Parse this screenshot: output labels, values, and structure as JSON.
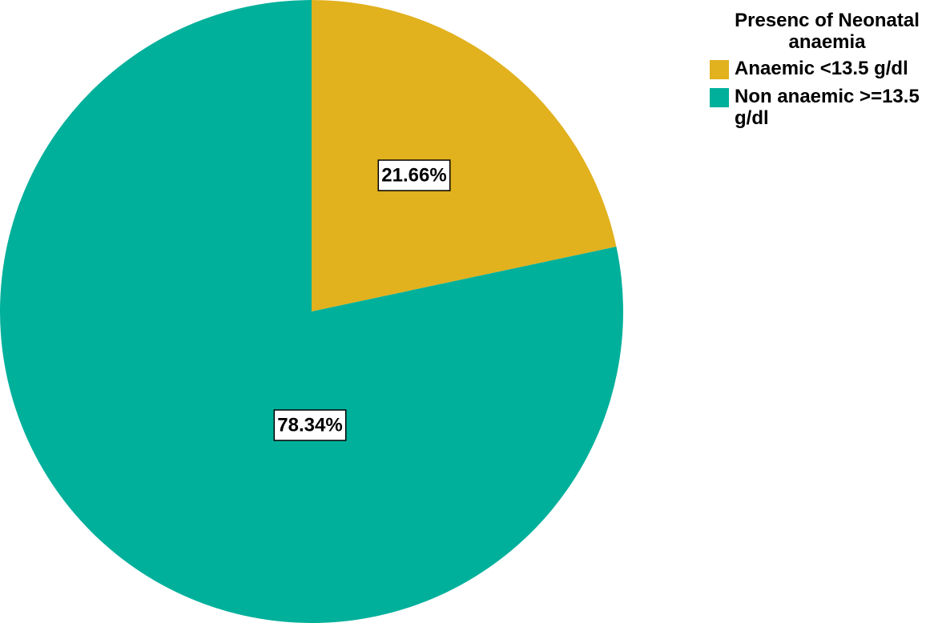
{
  "chart_data": {
    "type": "pie",
    "legend_title": "Presenc of Neonatal anaemia",
    "categories": [
      "Anaemic <13.5 g/dl",
      "Non anaemic >=13.5 g/dl"
    ],
    "values": [
      21.66,
      78.34
    ],
    "value_labels": [
      "21.66%",
      "78.34%"
    ],
    "colors": [
      "#e1b11e",
      "#00b09b"
    ],
    "legend": "top-right"
  }
}
